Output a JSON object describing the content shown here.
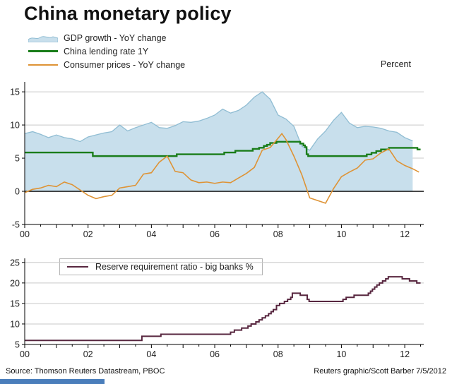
{
  "title": "China monetary policy",
  "percent_label": "Percent",
  "footer": {
    "source": "Source: Thomson Reuters Datastream, PBOC",
    "credit": "Reuters graphic/Scott Barber 7/5/2012"
  },
  "colors": {
    "grid": "#c9c9c9",
    "axis": "#000000",
    "accent_bar": "#4a7ebb"
  },
  "chart_data": [
    {
      "type": "line",
      "title": "",
      "ylabel": "Percent",
      "grid": true,
      "legend_position": "top-left",
      "xlim": [
        0,
        12.6
      ],
      "ylim": [
        -5,
        16.5
      ],
      "yticks": [
        -5,
        0,
        5,
        10,
        15
      ],
      "zeroline": true,
      "xticks": [
        {
          "x": 0,
          "label": "00"
        },
        {
          "x": 2,
          "label": "02"
        },
        {
          "x": 4,
          "label": "04"
        },
        {
          "x": 6,
          "label": "06"
        },
        {
          "x": 8,
          "label": "08"
        },
        {
          "x": 10,
          "label": "10"
        },
        {
          "x": 12,
          "label": "12"
        }
      ],
      "series": [
        {
          "name": "GDP growth - YoY change",
          "type": "area",
          "fill": "#c8dfec",
          "stroke": "#90bdd3",
          "points": [
            [
              0,
              8.7
            ],
            [
              0.25,
              9.0
            ],
            [
              0.5,
              8.6
            ],
            [
              0.75,
              8.1
            ],
            [
              1,
              8.5
            ],
            [
              1.25,
              8.1
            ],
            [
              1.5,
              7.9
            ],
            [
              1.75,
              7.5
            ],
            [
              2,
              8.2
            ],
            [
              2.25,
              8.5
            ],
            [
              2.5,
              8.8
            ],
            [
              2.75,
              9.0
            ],
            [
              3,
              10.0
            ],
            [
              3.25,
              9.1
            ],
            [
              3.5,
              9.6
            ],
            [
              3.75,
              10.0
            ],
            [
              4,
              10.4
            ],
            [
              4.25,
              9.6
            ],
            [
              4.5,
              9.5
            ],
            [
              4.75,
              9.9
            ],
            [
              5,
              10.5
            ],
            [
              5.25,
              10.4
            ],
            [
              5.5,
              10.6
            ],
            [
              5.75,
              11.0
            ],
            [
              6,
              11.5
            ],
            [
              6.25,
              12.4
            ],
            [
              6.5,
              11.8
            ],
            [
              6.75,
              12.2
            ],
            [
              7,
              13.0
            ],
            [
              7.25,
              14.2
            ],
            [
              7.5,
              15.0
            ],
            [
              7.75,
              13.9
            ],
            [
              8,
              11.5
            ],
            [
              8.25,
              10.9
            ],
            [
              8.5,
              9.8
            ],
            [
              8.75,
              6.8
            ],
            [
              9,
              6.2
            ],
            [
              9.25,
              7.9
            ],
            [
              9.5,
              9.1
            ],
            [
              9.75,
              10.7
            ],
            [
              10,
              11.9
            ],
            [
              10.25,
              10.3
            ],
            [
              10.5,
              9.6
            ],
            [
              10.75,
              9.8
            ],
            [
              11,
              9.7
            ],
            [
              11.25,
              9.5
            ],
            [
              11.5,
              9.1
            ],
            [
              11.75,
              8.9
            ],
            [
              12,
              8.1
            ],
            [
              12.25,
              7.6
            ]
          ]
        },
        {
          "name": "China lending rate 1Y",
          "type": "step",
          "color": "#1a7d1a",
          "width": 2.4,
          "points": [
            [
              0,
              5.85
            ],
            [
              2.15,
              5.31
            ],
            [
              4.8,
              5.58
            ],
            [
              6.3,
              5.85
            ],
            [
              6.65,
              6.12
            ],
            [
              7.2,
              6.39
            ],
            [
              7.4,
              6.57
            ],
            [
              7.55,
              6.84
            ],
            [
              7.65,
              7.02
            ],
            [
              7.75,
              7.29
            ],
            [
              7.95,
              7.47
            ],
            [
              8.7,
              7.2
            ],
            [
              8.8,
              6.93
            ],
            [
              8.85,
              6.66
            ],
            [
              8.9,
              5.58
            ],
            [
              8.95,
              5.31
            ],
            [
              10.8,
              5.56
            ],
            [
              10.95,
              5.81
            ],
            [
              11.1,
              6.06
            ],
            [
              11.25,
              6.31
            ],
            [
              11.5,
              6.56
            ],
            [
              12.4,
              6.31
            ],
            [
              12.5,
              6.31
            ]
          ]
        },
        {
          "name": "Consumer prices - YoY change",
          "type": "line",
          "color": "#de9335",
          "width": 1.6,
          "points": [
            [
              0,
              -0.2
            ],
            [
              0.25,
              0.3
            ],
            [
              0.5,
              0.5
            ],
            [
              0.75,
              0.9
            ],
            [
              1,
              0.7
            ],
            [
              1.25,
              1.4
            ],
            [
              1.5,
              1.0
            ],
            [
              1.75,
              0.2
            ],
            [
              2,
              -0.6
            ],
            [
              2.25,
              -1.1
            ],
            [
              2.5,
              -0.8
            ],
            [
              2.75,
              -0.6
            ],
            [
              3,
              0.5
            ],
            [
              3.25,
              0.7
            ],
            [
              3.5,
              0.9
            ],
            [
              3.75,
              2.6
            ],
            [
              4,
              2.8
            ],
            [
              4.25,
              4.4
            ],
            [
              4.5,
              5.3
            ],
            [
              4.75,
              3.0
            ],
            [
              5,
              2.8
            ],
            [
              5.25,
              1.7
            ],
            [
              5.5,
              1.3
            ],
            [
              5.75,
              1.4
            ],
            [
              6,
              1.2
            ],
            [
              6.25,
              1.4
            ],
            [
              6.5,
              1.3
            ],
            [
              6.75,
              2.0
            ],
            [
              7,
              2.7
            ],
            [
              7.25,
              3.6
            ],
            [
              7.5,
              6.2
            ],
            [
              7.75,
              6.6
            ],
            [
              8,
              8.0
            ],
            [
              8.12,
              8.7
            ],
            [
              8.25,
              7.8
            ],
            [
              8.5,
              5.3
            ],
            [
              8.75,
              2.5
            ],
            [
              9,
              -1.0
            ],
            [
              9.25,
              -1.4
            ],
            [
              9.5,
              -1.8
            ],
            [
              9.75,
              0.4
            ],
            [
              10,
              2.2
            ],
            [
              10.25,
              2.9
            ],
            [
              10.5,
              3.5
            ],
            [
              10.75,
              4.7
            ],
            [
              11,
              4.9
            ],
            [
              11.25,
              5.8
            ],
            [
              11.5,
              6.4
            ],
            [
              11.75,
              4.6
            ],
            [
              12,
              3.9
            ],
            [
              12.25,
              3.4
            ],
            [
              12.45,
              2.9
            ]
          ]
        }
      ]
    },
    {
      "type": "line",
      "title": "",
      "grid": true,
      "legend_position": "top-left-inside",
      "xlim": [
        0,
        12.6
      ],
      "ylim": [
        5,
        26
      ],
      "yticks": [
        5,
        10,
        15,
        20,
        25
      ],
      "zeroline": false,
      "xticks": [
        {
          "x": 0,
          "label": "00"
        },
        {
          "x": 2,
          "label": "02"
        },
        {
          "x": 4,
          "label": "04"
        },
        {
          "x": 6,
          "label": "06"
        },
        {
          "x": 8,
          "label": "08"
        },
        {
          "x": 10,
          "label": "10"
        },
        {
          "x": 12,
          "label": "12"
        }
      ],
      "series": [
        {
          "name": "Reserve requirement ratio - big banks %",
          "type": "step",
          "color": "#57263f",
          "width": 2,
          "points": [
            [
              0,
              6
            ],
            [
              3.7,
              7
            ],
            [
              4.3,
              7.5
            ],
            [
              6.5,
              8
            ],
            [
              6.62,
              8.5
            ],
            [
              6.85,
              9
            ],
            [
              7.05,
              9.5
            ],
            [
              7.15,
              10
            ],
            [
              7.3,
              10.5
            ],
            [
              7.4,
              11
            ],
            [
              7.5,
              11.5
            ],
            [
              7.6,
              12
            ],
            [
              7.7,
              12.5
            ],
            [
              7.78,
              13
            ],
            [
              7.85,
              13.5
            ],
            [
              7.95,
              14.5
            ],
            [
              8.05,
              15
            ],
            [
              8.2,
              15.5
            ],
            [
              8.3,
              16
            ],
            [
              8.4,
              16.5
            ],
            [
              8.45,
              17.5
            ],
            [
              8.7,
              17
            ],
            [
              8.92,
              16
            ],
            [
              8.98,
              15.5
            ],
            [
              10.05,
              16
            ],
            [
              10.15,
              16.5
            ],
            [
              10.4,
              17
            ],
            [
              10.85,
              17.5
            ],
            [
              10.92,
              18
            ],
            [
              10.98,
              18.5
            ],
            [
              11.05,
              19
            ],
            [
              11.12,
              19.5
            ],
            [
              11.2,
              20
            ],
            [
              11.3,
              20.5
            ],
            [
              11.4,
              21
            ],
            [
              11.48,
              21.5
            ],
            [
              11.92,
              21
            ],
            [
              12.15,
              20.5
            ],
            [
              12.38,
              20
            ],
            [
              12.5,
              20
            ]
          ]
        }
      ]
    }
  ]
}
